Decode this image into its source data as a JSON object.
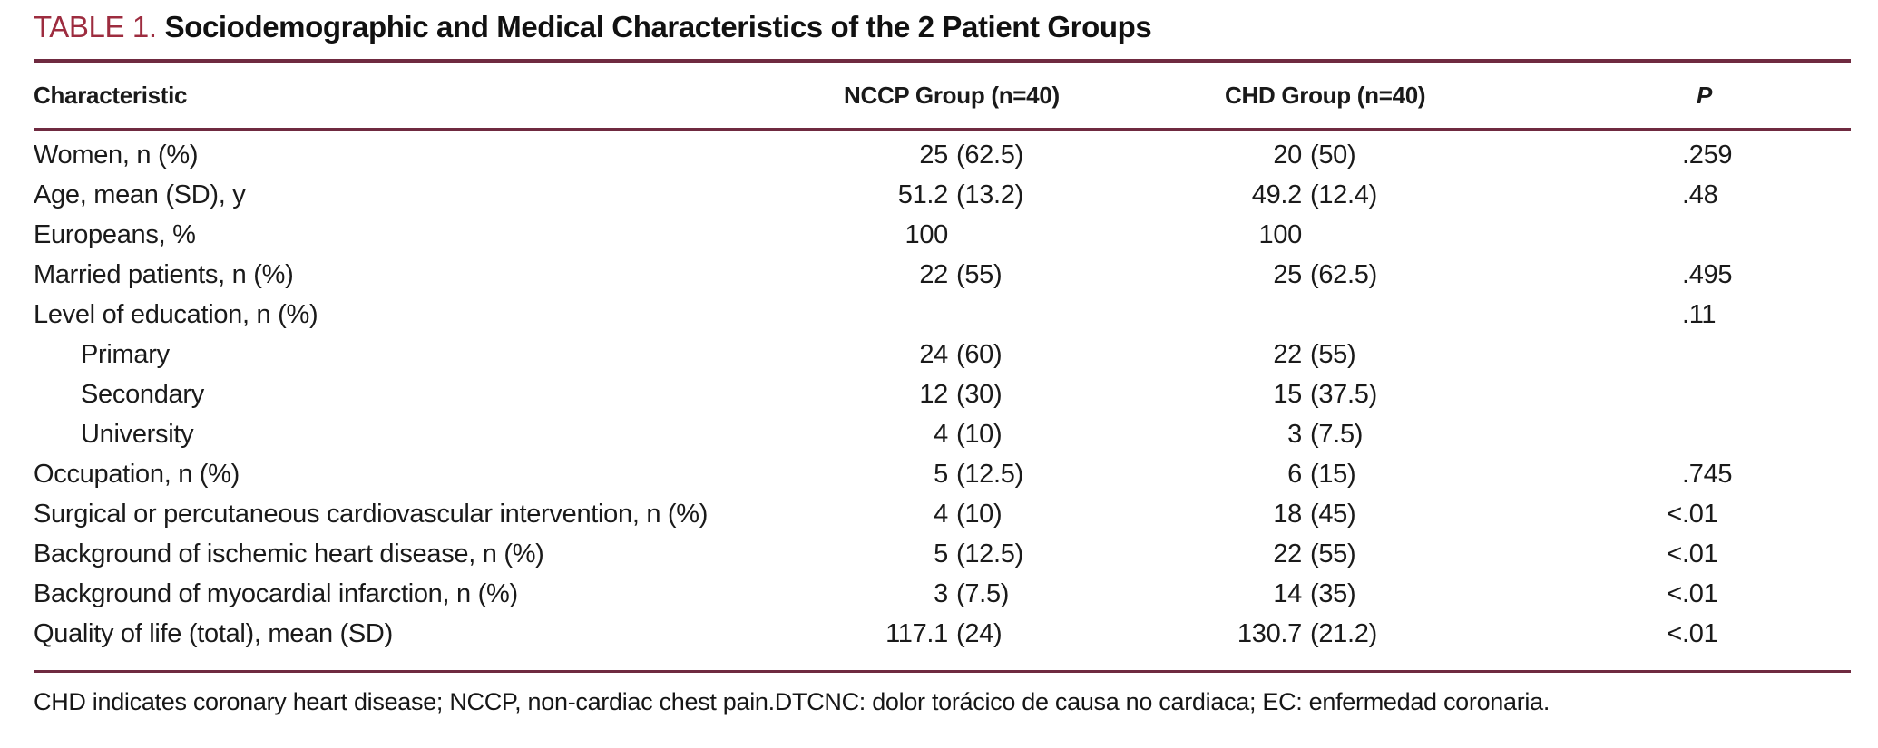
{
  "title": {
    "label": "TABLE 1.",
    "text": "Sociodemographic and Medical Characteristics of the 2 Patient Groups"
  },
  "table": {
    "headers": {
      "characteristic": "Characteristic",
      "nccp": "NCCP Group (n=40)",
      "chd": "CHD Group (n=40)",
      "p": "P"
    },
    "rows": [
      {
        "label": "Women, n (%)",
        "indent": false,
        "nccp": "25 (62.5)",
        "chd": "20 (50)",
        "p": ".259"
      },
      {
        "label": "Age, mean (SD), y",
        "indent": false,
        "nccp": "51.2 (13.2)",
        "chd": "49.2 (12.4)",
        "p": ".48"
      },
      {
        "label": "Europeans, %",
        "indent": false,
        "nccp": "100",
        "chd": "100",
        "p": ""
      },
      {
        "label": "Married patients, n (%)",
        "indent": false,
        "nccp": "22 (55)",
        "chd": "25 (62.5)",
        "p": ".495"
      },
      {
        "label": "Level of education, n (%)",
        "indent": false,
        "nccp": "",
        "chd": "",
        "p": ".11"
      },
      {
        "label": "Primary",
        "indent": true,
        "nccp": "24 (60)",
        "chd": "22 (55)",
        "p": ""
      },
      {
        "label": "Secondary",
        "indent": true,
        "nccp": "12 (30)",
        "chd": "15 (37.5)",
        "p": ""
      },
      {
        "label": "University",
        "indent": true,
        "nccp": "4 (10)",
        "chd": "3 (7.5)",
        "p": ""
      },
      {
        "label": "Occupation, n (%)",
        "indent": false,
        "nccp": "5 (12.5)",
        "chd": "6 (15)",
        "p": ".745"
      },
      {
        "label": "Surgical or percutaneous cardiovascular intervention, n (%)",
        "indent": false,
        "nccp": "4 (10)",
        "chd": "18 (45)",
        "p": "<.01"
      },
      {
        "label": "Background of ischemic heart disease, n (%)",
        "indent": false,
        "nccp": "5 (12.5)",
        "chd": "22 (55)",
        "p": "<.01"
      },
      {
        "label": "Background of myocardial infarction, n (%)",
        "indent": false,
        "nccp": "3 (7.5)",
        "chd": "14 (35)",
        "p": "<.01"
      },
      {
        "label": "Quality of life (total), mean (SD)",
        "indent": false,
        "nccp": "117.1 (24)",
        "chd": "130.7 (21.2)",
        "p": "<.01"
      }
    ]
  },
  "footnote": "CHD indicates coronary heart disease; NCCP, non-cardiac chest pain.DTCNC: dolor torácico de causa no cardiaca; EC: enfermedad coronaria.",
  "colors": {
    "accent_red": "#9d2c3f",
    "rule": "#6f2a40",
    "text": "#1a1a1a"
  }
}
